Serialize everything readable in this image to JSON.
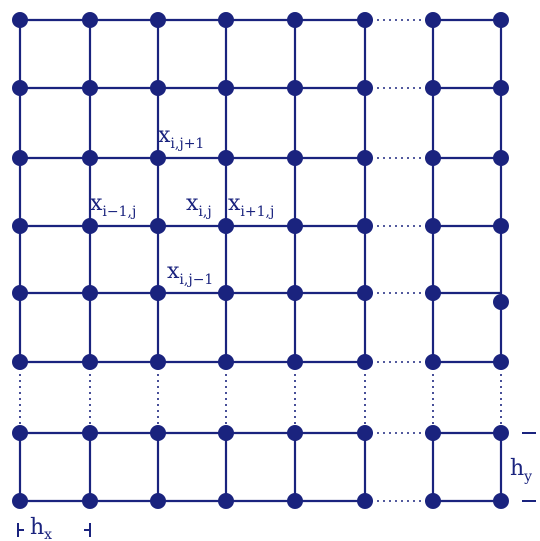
{
  "diagram": {
    "color": "#1a237e",
    "stencil": {
      "up": {
        "base": "x",
        "sub": "i,j+1"
      },
      "left": {
        "base": "x",
        "sub": "i−1,j"
      },
      "center": {
        "base": "x",
        "sub": "i,j"
      },
      "right": {
        "base": "x",
        "sub": "i+1,j"
      },
      "down": {
        "base": "x",
        "sub": "i,j−1"
      }
    },
    "spacing": {
      "x": {
        "base": "h",
        "sub": "x"
      },
      "y": {
        "base": "h",
        "sub": "y"
      }
    }
  }
}
